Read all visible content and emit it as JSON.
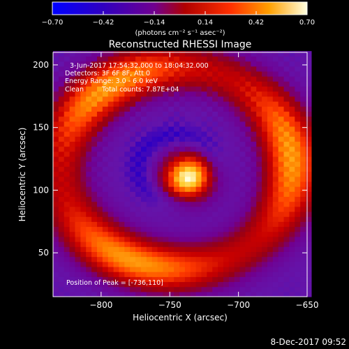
{
  "chart_data": {
    "type": "heatmap",
    "title": "Reconstructed RHESSI Image",
    "xlabel": "Heliocentric X (arcsec)",
    "ylabel": "Heliocentric Y (arcsec)",
    "xlim": [
      -835,
      -650
    ],
    "ylim": [
      15,
      210
    ],
    "x_ticks": [
      -800,
      -750,
      -700,
      -650
    ],
    "y_ticks": [
      50,
      100,
      150,
      200
    ],
    "x_tick_labels": [
      "−800",
      "−750",
      "−700",
      "−650"
    ],
    "y_tick_labels": [
      "50",
      "100",
      "150",
      "200"
    ],
    "colorbar": {
      "range": [
        -0.7,
        0.7
      ],
      "ticks": [
        -0.7,
        -0.42,
        -0.14,
        0.14,
        0.42,
        0.7
      ],
      "tick_labels": [
        "−0.70",
        "−0.42",
        "−0.14",
        "0.14",
        "0.42",
        "0.70"
      ],
      "units_label": "(photons cm⁻² s⁻¹ asec⁻²)"
    },
    "annotations": {
      "time_range": "3-Jun-2017 17:54:32.000 to 18:04:32.000",
      "detectors": "Detectors: 3F 6F 8F, Att 0",
      "energy": "Energy Range: 3.0 - 6.0 keV",
      "method": "Clean",
      "counts": "Total counts: 7.87E+04",
      "peak": "Position of Peak = [-736,110]"
    },
    "peak": {
      "x": -736,
      "y": 110,
      "value": 0.7
    },
    "ring": {
      "center_x": -745,
      "center_y": 118,
      "radius": 80,
      "value": 0.3
    },
    "background_value": -0.3
  },
  "footer": {
    "date": "8-Dec-2017 09:52"
  }
}
